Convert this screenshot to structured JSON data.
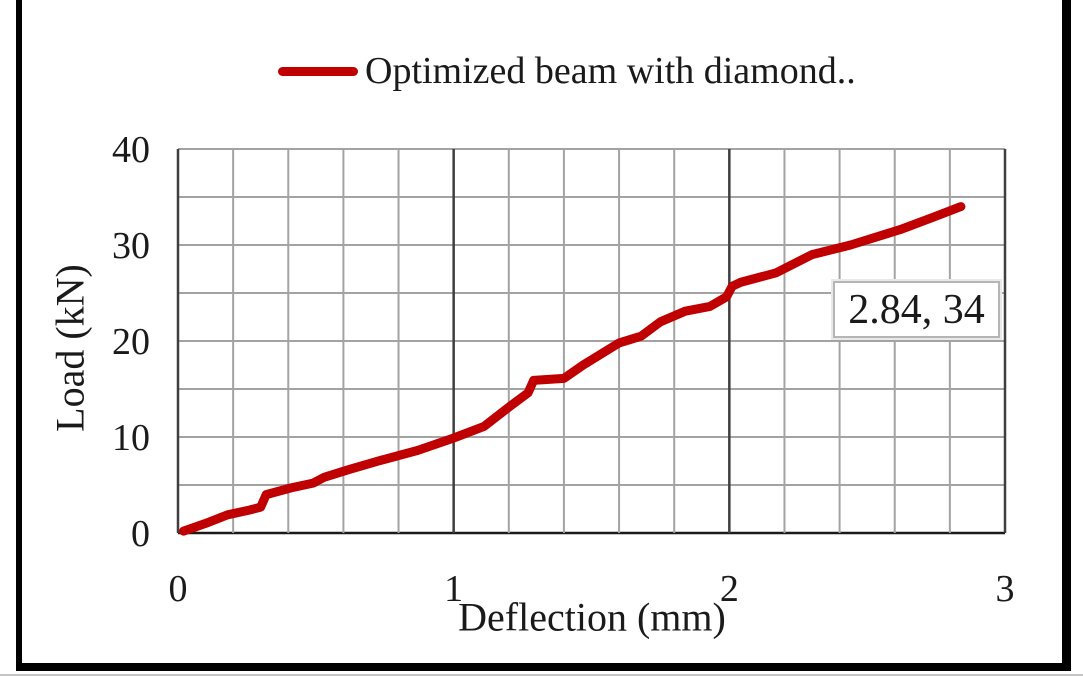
{
  "legend": {
    "label": "Optimized beam with diamond..",
    "line_color": "#c00000"
  },
  "y_axis": {
    "title": "Load (kN)",
    "tick_labels": [
      "0",
      "10",
      "20",
      "30",
      "40"
    ]
  },
  "x_axis": {
    "title": "Deflection (mm)",
    "tick_labels": [
      "0",
      "1",
      "2",
      "3"
    ]
  },
  "annotation": {
    "text": "2.84, 34"
  },
  "colors": {
    "curve": "#c00000",
    "grid_minor": "#a3a3a3",
    "grid_major": "#3f3f3f",
    "axis_line": "#1a1a1a",
    "frame": "#000000",
    "text": "#1a1a1a"
  },
  "chart_data": {
    "type": "line",
    "title": "",
    "xlabel": "Deflection (mm)",
    "ylabel": "Load (kN)",
    "xlim": [
      0,
      3
    ],
    "ylim": [
      0,
      40
    ],
    "x_ticks": [
      0,
      1,
      2,
      3
    ],
    "y_ticks": [
      0,
      10,
      20,
      30,
      40
    ],
    "x_minor_step": 0.2,
    "y_grid_step": 5,
    "grid": true,
    "legend_position": "top-center",
    "annotation": {
      "x": 2.84,
      "y": 34,
      "label": "2.84, 34"
    },
    "series": [
      {
        "name": "Optimized beam with diamond..",
        "color": "#c00000",
        "points": [
          [
            0.02,
            0.2
          ],
          [
            0.1,
            1.0
          ],
          [
            0.18,
            1.9
          ],
          [
            0.26,
            2.4
          ],
          [
            0.3,
            2.7
          ],
          [
            0.32,
            4.0
          ],
          [
            0.41,
            4.7
          ],
          [
            0.49,
            5.2
          ],
          [
            0.53,
            5.8
          ],
          [
            0.62,
            6.6
          ],
          [
            0.74,
            7.6
          ],
          [
            0.87,
            8.6
          ],
          [
            1.0,
            9.9
          ],
          [
            1.11,
            11.1
          ],
          [
            1.2,
            13.1
          ],
          [
            1.27,
            14.6
          ],
          [
            1.29,
            15.9
          ],
          [
            1.4,
            16.1
          ],
          [
            1.47,
            17.5
          ],
          [
            1.6,
            19.8
          ],
          [
            1.68,
            20.5
          ],
          [
            1.75,
            22.0
          ],
          [
            1.84,
            23.1
          ],
          [
            1.93,
            23.6
          ],
          [
            1.99,
            24.6
          ],
          [
            2.01,
            25.7
          ],
          [
            2.04,
            26.1
          ],
          [
            2.17,
            27.1
          ],
          [
            2.3,
            29.0
          ],
          [
            2.44,
            30.0
          ],
          [
            2.62,
            31.6
          ],
          [
            2.74,
            32.9
          ],
          [
            2.84,
            34.0
          ]
        ]
      }
    ]
  }
}
